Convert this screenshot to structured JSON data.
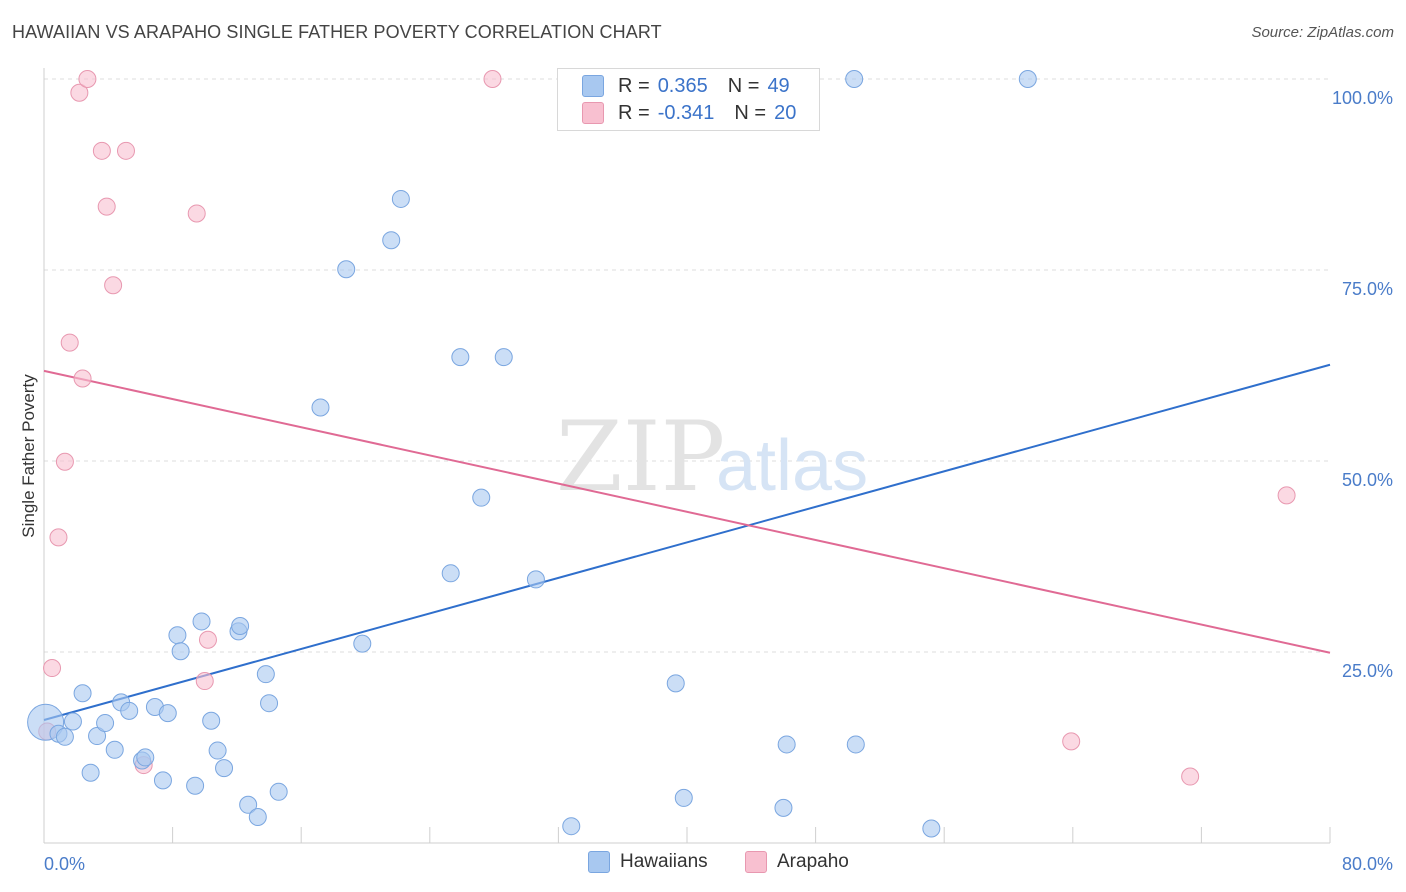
{
  "title": "HAWAIIAN VS ARAPAHO SINGLE FATHER POVERTY CORRELATION CHART",
  "source": "Source: ZipAtlas.com",
  "watermark": {
    "zip": "ZIP",
    "atlas": "atlas"
  },
  "legend": {
    "r_label": "R =",
    "n_label": "N =",
    "rows": [
      {
        "name": "Hawaiians",
        "r": "0.365",
        "n": "49",
        "color": "#a8c8f0",
        "border": "#7aa6e0"
      },
      {
        "name": "Arapaho",
        "r": "-0.341",
        "n": "20",
        "color": "#f8c0d0",
        "border": "#e898b0"
      }
    ]
  },
  "chart_data": {
    "type": "scatter",
    "title": "HAWAIIAN VS ARAPAHO SINGLE FATHER POVERTY CORRELATION CHART",
    "xlabel": "",
    "ylabel": "Single Father Poverty",
    "xlim": [
      0,
      80
    ],
    "ylim": [
      0,
      100
    ],
    "x_tick_labels": [
      "0.0%",
      "80.0%"
    ],
    "y_tick_labels": [
      "25.0%",
      "50.0%",
      "75.0%",
      "100.0%"
    ],
    "y_ticks": [
      25,
      50,
      75,
      100
    ],
    "grid": true,
    "legend_position": "top-center",
    "series": [
      {
        "name": "Hawaiians",
        "color": "#a8c8f0",
        "stroke": "#7aa6e0",
        "line_color": "#2f6fcc",
        "trend": {
          "x": [
            0,
            80
          ],
          "y": [
            16.1,
            62.6
          ]
        },
        "points": [
          {
            "x": 0.1,
            "y": 15.8,
            "big": true
          },
          {
            "x": 0.9,
            "y": 14.3
          },
          {
            "x": 1.3,
            "y": 13.9
          },
          {
            "x": 1.8,
            "y": 15.9
          },
          {
            "x": 2.4,
            "y": 19.6
          },
          {
            "x": 2.9,
            "y": 9.2
          },
          {
            "x": 3.3,
            "y": 14.0
          },
          {
            "x": 3.8,
            "y": 15.7
          },
          {
            "x": 4.4,
            "y": 12.2
          },
          {
            "x": 4.8,
            "y": 18.4
          },
          {
            "x": 5.3,
            "y": 17.3
          },
          {
            "x": 6.1,
            "y": 10.8
          },
          {
            "x": 6.3,
            "y": 11.2
          },
          {
            "x": 6.9,
            "y": 17.8
          },
          {
            "x": 7.4,
            "y": 8.2
          },
          {
            "x": 7.7,
            "y": 17.0
          },
          {
            "x": 8.3,
            "y": 27.2
          },
          {
            "x": 8.5,
            "y": 25.1
          },
          {
            "x": 9.4,
            "y": 7.5
          },
          {
            "x": 9.8,
            "y": 29.0
          },
          {
            "x": 10.4,
            "y": 16.0
          },
          {
            "x": 10.8,
            "y": 12.1
          },
          {
            "x": 11.2,
            "y": 9.8
          },
          {
            "x": 12.1,
            "y": 27.7
          },
          {
            "x": 12.2,
            "y": 28.4
          },
          {
            "x": 12.7,
            "y": 5.0
          },
          {
            "x": 13.3,
            "y": 3.4
          },
          {
            "x": 13.8,
            "y": 22.1
          },
          {
            "x": 14.0,
            "y": 18.3
          },
          {
            "x": 14.6,
            "y": 6.7
          },
          {
            "x": 17.2,
            "y": 57.0
          },
          {
            "x": 18.8,
            "y": 75.1
          },
          {
            "x": 19.8,
            "y": 26.1
          },
          {
            "x": 21.6,
            "y": 78.9
          },
          {
            "x": 22.2,
            "y": 84.3
          },
          {
            "x": 25.3,
            "y": 35.3
          },
          {
            "x": 25.9,
            "y": 63.6
          },
          {
            "x": 27.2,
            "y": 45.2
          },
          {
            "x": 28.6,
            "y": 63.6
          },
          {
            "x": 30.6,
            "y": 34.5
          },
          {
            "x": 32.8,
            "y": 2.2
          },
          {
            "x": 39.3,
            "y": 20.9
          },
          {
            "x": 39.8,
            "y": 5.9
          },
          {
            "x": 46.0,
            "y": 4.6
          },
          {
            "x": 46.2,
            "y": 12.9
          },
          {
            "x": 50.5,
            "y": 12.9
          },
          {
            "x": 50.4,
            "y": 100.0
          },
          {
            "x": 55.2,
            "y": 1.9
          },
          {
            "x": 61.2,
            "y": 100.0
          }
        ]
      },
      {
        "name": "Arapaho",
        "color": "#f8c0d0",
        "stroke": "#e898b0",
        "line_color": "#e06a94",
        "trend": {
          "x": [
            0,
            80
          ],
          "y": [
            61.8,
            24.9
          ]
        },
        "points": [
          {
            "x": 0.5,
            "y": 22.9
          },
          {
            "x": 0.9,
            "y": 40.0
          },
          {
            "x": 1.3,
            "y": 49.9
          },
          {
            "x": 1.6,
            "y": 65.5
          },
          {
            "x": 2.2,
            "y": 98.2
          },
          {
            "x": 2.4,
            "y": 60.8
          },
          {
            "x": 2.7,
            "y": 100.0
          },
          {
            "x": 3.6,
            "y": 90.6
          },
          {
            "x": 3.9,
            "y": 83.3
          },
          {
            "x": 4.3,
            "y": 73.0
          },
          {
            "x": 5.1,
            "y": 90.6
          },
          {
            "x": 6.2,
            "y": 10.2
          },
          {
            "x": 9.5,
            "y": 82.4
          },
          {
            "x": 10.0,
            "y": 21.2
          },
          {
            "x": 10.2,
            "y": 26.6
          },
          {
            "x": 27.9,
            "y": 100.0
          },
          {
            "x": 63.9,
            "y": 13.3
          },
          {
            "x": 71.3,
            "y": 8.7
          },
          {
            "x": 77.3,
            "y": 45.5
          },
          {
            "x": 0.2,
            "y": 14.6
          }
        ]
      }
    ]
  }
}
